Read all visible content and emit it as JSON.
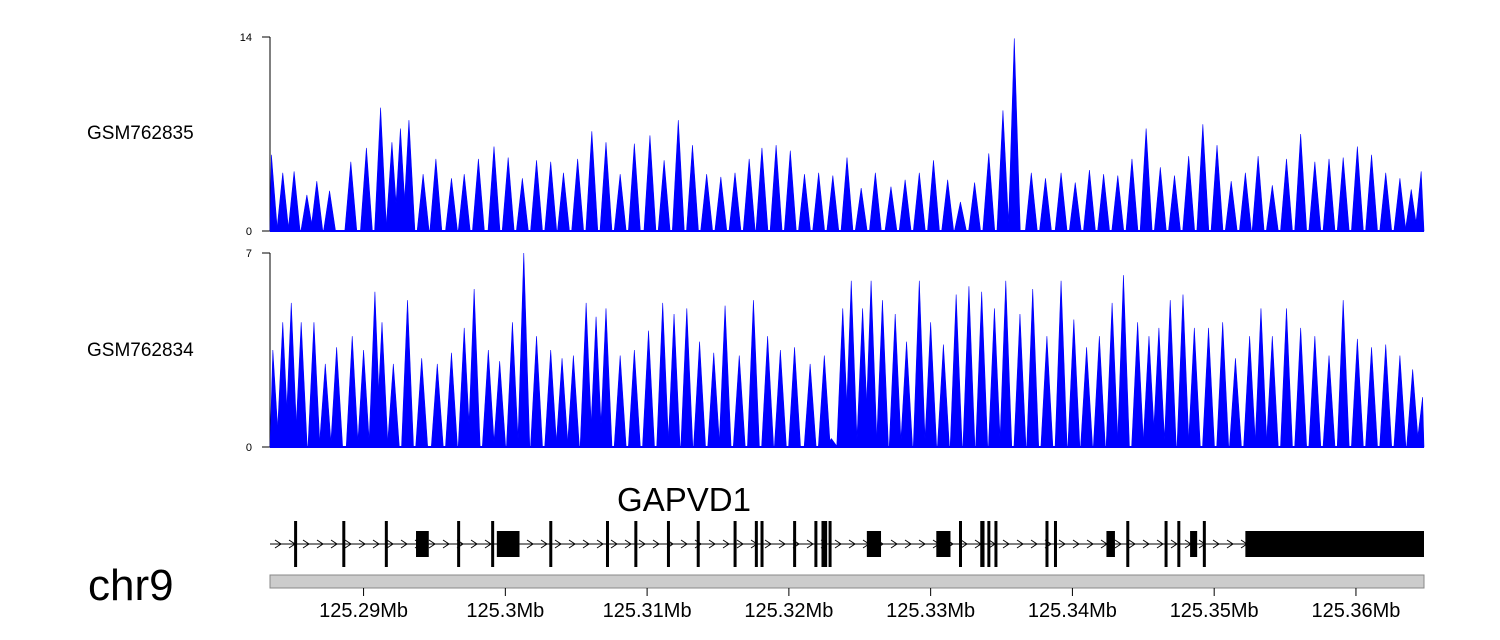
{
  "chart_data": {
    "type": "area",
    "x_range": [
      125.2834,
      125.3648
    ],
    "x_unit": "Mb",
    "chromosome": "chr9",
    "tracks": [
      {
        "name": "GSM762835",
        "ylim": [
          0,
          14
        ],
        "y_ticks": [
          "0",
          "14"
        ],
        "color": "#0000ff",
        "peaks": [
          [
            125.2835,
            5.5
          ],
          [
            125.2843,
            4.2
          ],
          [
            125.2851,
            4.3
          ],
          [
            125.286,
            2.6
          ],
          [
            125.2867,
            3.6
          ],
          [
            125.2876,
            2.9
          ],
          [
            125.2891,
            5.0
          ],
          [
            125.2902,
            6.0
          ],
          [
            125.2912,
            8.9
          ],
          [
            125.292,
            6.4
          ],
          [
            125.2926,
            7.4
          ],
          [
            125.2932,
            8.0
          ],
          [
            125.2942,
            4.1
          ],
          [
            125.2951,
            5.2
          ],
          [
            125.2962,
            3.8
          ],
          [
            125.2971,
            4.1
          ],
          [
            125.2981,
            5.2
          ],
          [
            125.2992,
            6.1
          ],
          [
            125.3002,
            5.3
          ],
          [
            125.3012,
            3.8
          ],
          [
            125.3022,
            5.1
          ],
          [
            125.3032,
            5.0
          ],
          [
            125.3041,
            4.2
          ],
          [
            125.3051,
            5.2
          ],
          [
            125.3061,
            7.2
          ],
          [
            125.3071,
            6.4
          ],
          [
            125.3081,
            4.1
          ],
          [
            125.3091,
            6.3
          ],
          [
            125.3102,
            6.9
          ],
          [
            125.3112,
            5.1
          ],
          [
            125.3122,
            8.0
          ],
          [
            125.3132,
            6.2
          ],
          [
            125.3142,
            4.1
          ],
          [
            125.3152,
            3.9
          ],
          [
            125.3162,
            4.2
          ],
          [
            125.3172,
            5.2
          ],
          [
            125.3181,
            6.0
          ],
          [
            125.3191,
            6.2
          ],
          [
            125.3201,
            5.8
          ],
          [
            125.3211,
            4.1
          ],
          [
            125.3221,
            4.2
          ],
          [
            125.3231,
            4.0
          ],
          [
            125.3241,
            5.3
          ],
          [
            125.3251,
            3.1
          ],
          [
            125.3261,
            4.2
          ],
          [
            125.3272,
            3.2
          ],
          [
            125.3282,
            3.7
          ],
          [
            125.3292,
            4.2
          ],
          [
            125.3302,
            5.1
          ],
          [
            125.3312,
            3.7
          ],
          [
            125.3321,
            2.1
          ],
          [
            125.3331,
            3.5
          ],
          [
            125.3341,
            5.6
          ],
          [
            125.3351,
            8.7
          ],
          [
            125.3359,
            13.9
          ],
          [
            125.3371,
            4.2
          ],
          [
            125.3381,
            3.8
          ],
          [
            125.3392,
            4.2
          ],
          [
            125.3402,
            3.5
          ],
          [
            125.3412,
            4.4
          ],
          [
            125.3422,
            4.1
          ],
          [
            125.3432,
            4.0
          ],
          [
            125.3442,
            5.2
          ],
          [
            125.3452,
            7.4
          ],
          [
            125.3462,
            4.6
          ],
          [
            125.3472,
            4.0
          ],
          [
            125.3482,
            5.4
          ],
          [
            125.3492,
            7.7
          ],
          [
            125.3502,
            6.2
          ],
          [
            125.3512,
            3.6
          ],
          [
            125.3522,
            4.2
          ],
          [
            125.3531,
            5.4
          ],
          [
            125.3541,
            3.3
          ],
          [
            125.3551,
            5.2
          ],
          [
            125.3561,
            7.0
          ],
          [
            125.3571,
            5.0
          ],
          [
            125.3581,
            5.2
          ],
          [
            125.3591,
            5.3
          ],
          [
            125.3601,
            6.1
          ],
          [
            125.3611,
            5.5
          ],
          [
            125.3621,
            4.2
          ],
          [
            125.3631,
            3.8
          ],
          [
            125.3639,
            3.0
          ],
          [
            125.3646,
            4.3
          ]
        ]
      },
      {
        "name": "GSM762834",
        "ylim": [
          0,
          7
        ],
        "y_ticks": [
          "0",
          "7"
        ],
        "color": "#0000ff",
        "peaks": [
          [
            125.2836,
            3.5
          ],
          [
            125.2843,
            4.5
          ],
          [
            125.2849,
            5.2
          ],
          [
            125.2856,
            4.5
          ],
          [
            125.2865,
            4.5
          ],
          [
            125.2873,
            3.0
          ],
          [
            125.2881,
            3.6
          ],
          [
            125.2892,
            4.0
          ],
          [
            125.29,
            3.5
          ],
          [
            125.2908,
            5.6
          ],
          [
            125.2913,
            4.5
          ],
          [
            125.2921,
            3.0
          ],
          [
            125.2931,
            5.3
          ],
          [
            125.2941,
            3.2
          ],
          [
            125.2952,
            3.0
          ],
          [
            125.2962,
            3.4
          ],
          [
            125.2971,
            4.3
          ],
          [
            125.2978,
            5.7
          ],
          [
            125.2988,
            3.5
          ],
          [
            125.2996,
            3.1
          ],
          [
            125.3005,
            4.5
          ],
          [
            125.3013,
            7.0
          ],
          [
            125.3022,
            4.0
          ],
          [
            125.3032,
            3.5
          ],
          [
            125.304,
            3.2
          ],
          [
            125.3048,
            3.3
          ],
          [
            125.3057,
            5.2
          ],
          [
            125.3064,
            4.7
          ],
          [
            125.3071,
            5.0
          ],
          [
            125.3081,
            3.3
          ],
          [
            125.3091,
            3.5
          ],
          [
            125.3101,
            4.2
          ],
          [
            125.3111,
            5.2
          ],
          [
            125.3119,
            4.8
          ],
          [
            125.3128,
            5.0
          ],
          [
            125.3137,
            3.8
          ],
          [
            125.3147,
            3.4
          ],
          [
            125.3155,
            5.1
          ],
          [
            125.3165,
            3.3
          ],
          [
            125.3175,
            5.3
          ],
          [
            125.3185,
            4.0
          ],
          [
            125.3194,
            3.5
          ],
          [
            125.3204,
            3.6
          ],
          [
            125.3215,
            3.0
          ],
          [
            125.3225,
            3.3
          ],
          [
            125.323,
            0.3
          ],
          [
            125.3238,
            5.0
          ],
          [
            125.3244,
            6.0
          ],
          [
            125.3252,
            5.0
          ],
          [
            125.3258,
            6.0
          ],
          [
            125.3266,
            5.3
          ],
          [
            125.3275,
            4.8
          ],
          [
            125.3283,
            3.8
          ],
          [
            125.3292,
            6.0
          ],
          [
            125.33,
            4.5
          ],
          [
            125.3309,
            3.7
          ],
          [
            125.3318,
            5.5
          ],
          [
            125.3327,
            5.8
          ],
          [
            125.3336,
            5.6
          ],
          [
            125.3345,
            5.0
          ],
          [
            125.3353,
            6.0
          ],
          [
            125.3363,
            4.8
          ],
          [
            125.3372,
            5.7
          ],
          [
            125.3382,
            4.0
          ],
          [
            125.3392,
            6.0
          ],
          [
            125.3401,
            4.6
          ],
          [
            125.341,
            3.6
          ],
          [
            125.3419,
            4.0
          ],
          [
            125.3428,
            5.2
          ],
          [
            125.3436,
            6.2
          ],
          [
            125.3446,
            4.5
          ],
          [
            125.3454,
            4.0
          ],
          [
            125.3461,
            4.3
          ],
          [
            125.3469,
            5.3
          ],
          [
            125.3478,
            5.5
          ],
          [
            125.3486,
            4.3
          ],
          [
            125.3496,
            4.3
          ],
          [
            125.3506,
            4.5
          ],
          [
            125.3515,
            3.2
          ],
          [
            125.3525,
            4.0
          ],
          [
            125.3533,
            5.0
          ],
          [
            125.3541,
            4.0
          ],
          [
            125.3551,
            5.0
          ],
          [
            125.3561,
            4.3
          ],
          [
            125.3571,
            4.0
          ],
          [
            125.3581,
            3.3
          ],
          [
            125.3591,
            5.3
          ],
          [
            125.3601,
            3.9
          ],
          [
            125.3611,
            3.6
          ],
          [
            125.3621,
            3.7
          ],
          [
            125.3631,
            3.3
          ],
          [
            125.364,
            2.8
          ],
          [
            125.3647,
            1.8
          ]
        ]
      }
    ],
    "gene": {
      "name": "GAPVD1",
      "strand": "+",
      "tx_start": 125.2834,
      "tx_end": 125.3648,
      "exons": [
        [
          125.2851,
          125.2852
        ],
        [
          125.2885,
          125.2886
        ],
        [
          125.2915,
          125.2917
        ],
        [
          125.2937,
          125.2946
        ],
        [
          125.2966,
          125.2968
        ],
        [
          125.299,
          125.2992
        ],
        [
          125.2994,
          125.301
        ],
        [
          125.3031,
          125.3032
        ],
        [
          125.3071,
          125.3072
        ],
        [
          125.3091,
          125.3093
        ],
        [
          125.3114,
          125.3116
        ],
        [
          125.3135,
          125.3137
        ],
        [
          125.3161,
          125.3163
        ],
        [
          125.3176,
          125.3178
        ],
        [
          125.318,
          125.3182
        ],
        [
          125.3203,
          125.3204
        ],
        [
          125.3218,
          125.322
        ],
        [
          125.3223,
          125.3227
        ],
        [
          125.3228,
          125.3229
        ],
        [
          125.3255,
          125.3265
        ],
        [
          125.3304,
          125.3314
        ],
        [
          125.332,
          125.3322
        ],
        [
          125.3335,
          125.3338
        ],
        [
          125.334,
          125.3342
        ],
        [
          125.3345,
          125.3347
        ],
        [
          125.3381,
          125.3383
        ],
        [
          125.3387,
          125.3389
        ],
        [
          125.3424,
          125.343
        ],
        [
          125.3438,
          125.344
        ],
        [
          125.3465,
          125.3467
        ],
        [
          125.3474,
          125.3476
        ],
        [
          125.3483,
          125.3488
        ],
        [
          125.3492,
          125.3494
        ],
        [
          125.3522,
          125.3648
        ]
      ]
    },
    "x_ticks": [
      "125.29Mb",
      "125.3Mb",
      "125.31Mb",
      "125.32Mb",
      "125.33Mb",
      "125.34Mb",
      "125.35Mb",
      "125.36Mb"
    ],
    "x_tick_values": [
      125.29,
      125.3,
      125.31,
      125.32,
      125.33,
      125.34,
      125.35,
      125.36
    ]
  }
}
